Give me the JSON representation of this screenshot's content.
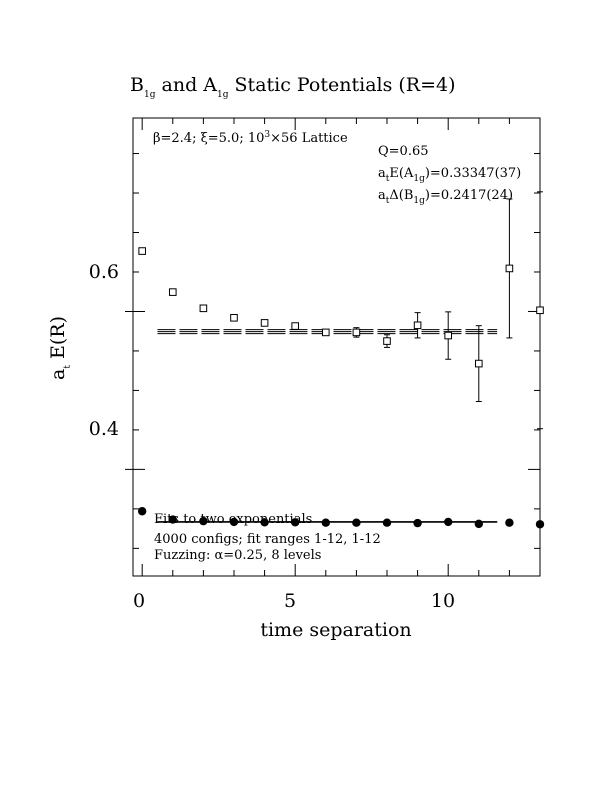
{
  "chart_data": {
    "type": "scatter",
    "title": {
      "pre": "B",
      "sub1": "1g",
      "mid": " and A",
      "sub2": "1g",
      "post": " Static Potentials (R=4)"
    },
    "xlabel": "time separation",
    "ylabel": {
      "main": "a",
      "sub": "t",
      "rest": " E(R)"
    },
    "xlim": [
      -0.3,
      13
    ],
    "ylim": [
      0.265,
      0.845
    ],
    "x_ticks": [
      0,
      5,
      10
    ],
    "y_ticks": [
      0.4,
      0.6
    ],
    "x_tick_labels": [
      "0",
      "5",
      "10"
    ],
    "y_tick_labels": [
      "0.4",
      "0.6"
    ],
    "annotations": {
      "lattice": {
        "beta": "β=2.4;  ξ=5.0;  10",
        "sup": "3",
        "rest": "×56 Lattice"
      },
      "q": "Q=0.65",
      "energy_a1g": {
        "main": "a",
        "sub": "t",
        "mid": "E(A",
        "sub2": "1g",
        "post": ")=0.33347(37)"
      },
      "delta_b1g": {
        "main": "a",
        "sub": "t",
        "mid": "Δ(B",
        "sub2": "1g",
        "post": ")=0.2417(24)"
      },
      "fits": "Fits to two exponentials",
      "configs": "4000 configs; fit ranges 1-12, 1-12",
      "fuzzing": "Fuzzing: α=0.25, 8 levels"
    },
    "series": [
      {
        "marker": "filled-circle",
        "points": [
          {
            "x": 0,
            "y": 0.347
          },
          {
            "x": 1,
            "y": 0.3365
          },
          {
            "x": 2,
            "y": 0.3345
          },
          {
            "x": 3,
            "y": 0.3335
          },
          {
            "x": 4,
            "y": 0.333
          },
          {
            "x": 5,
            "y": 0.333
          },
          {
            "x": 6,
            "y": 0.3325
          },
          {
            "x": 7,
            "y": 0.3325
          },
          {
            "x": 8,
            "y": 0.3325
          },
          {
            "x": 9,
            "y": 0.332
          },
          {
            "x": 10,
            "y": 0.3335
          },
          {
            "x": 11,
            "y": 0.331
          },
          {
            "x": 12,
            "y": 0.3325
          },
          {
            "x": 13,
            "y": 0.3305
          }
        ],
        "fit": {
          "x_range": [
            0.5,
            11.6
          ],
          "y": 0.3335,
          "err": 0.0004
        }
      },
      {
        "marker": "open-square",
        "points": [
          {
            "x": 0,
            "y": 0.6765,
            "err": 0.002
          },
          {
            "x": 1,
            "y": 0.6245,
            "err": 0.002
          },
          {
            "x": 2,
            "y": 0.604,
            "err": 0.002
          },
          {
            "x": 3,
            "y": 0.592,
            "err": 0.003
          },
          {
            "x": 4,
            "y": 0.5855,
            "err": 0.003
          },
          {
            "x": 5,
            "y": 0.5815,
            "err": 0.004
          },
          {
            "x": 6,
            "y": 0.5735,
            "err": 0.004
          },
          {
            "x": 7,
            "y": 0.5735,
            "err": 0.006
          },
          {
            "x": 8,
            "y": 0.5625,
            "err": 0.008
          },
          {
            "x": 9,
            "y": 0.5825,
            "err": 0.016
          },
          {
            "x": 10,
            "y": 0.5695,
            "err": 0.03
          },
          {
            "x": 11,
            "y": 0.534,
            "err": 0.048
          },
          {
            "x": 12,
            "y": 0.6545,
            "err": 0.088
          },
          {
            "x": 13,
            "y": 0.6015,
            "err": 0.15
          }
        ],
        "fit": {
          "x_range": [
            0.5,
            11.6
          ],
          "y": 0.5745,
          "err": 0.0025
        }
      }
    ]
  }
}
